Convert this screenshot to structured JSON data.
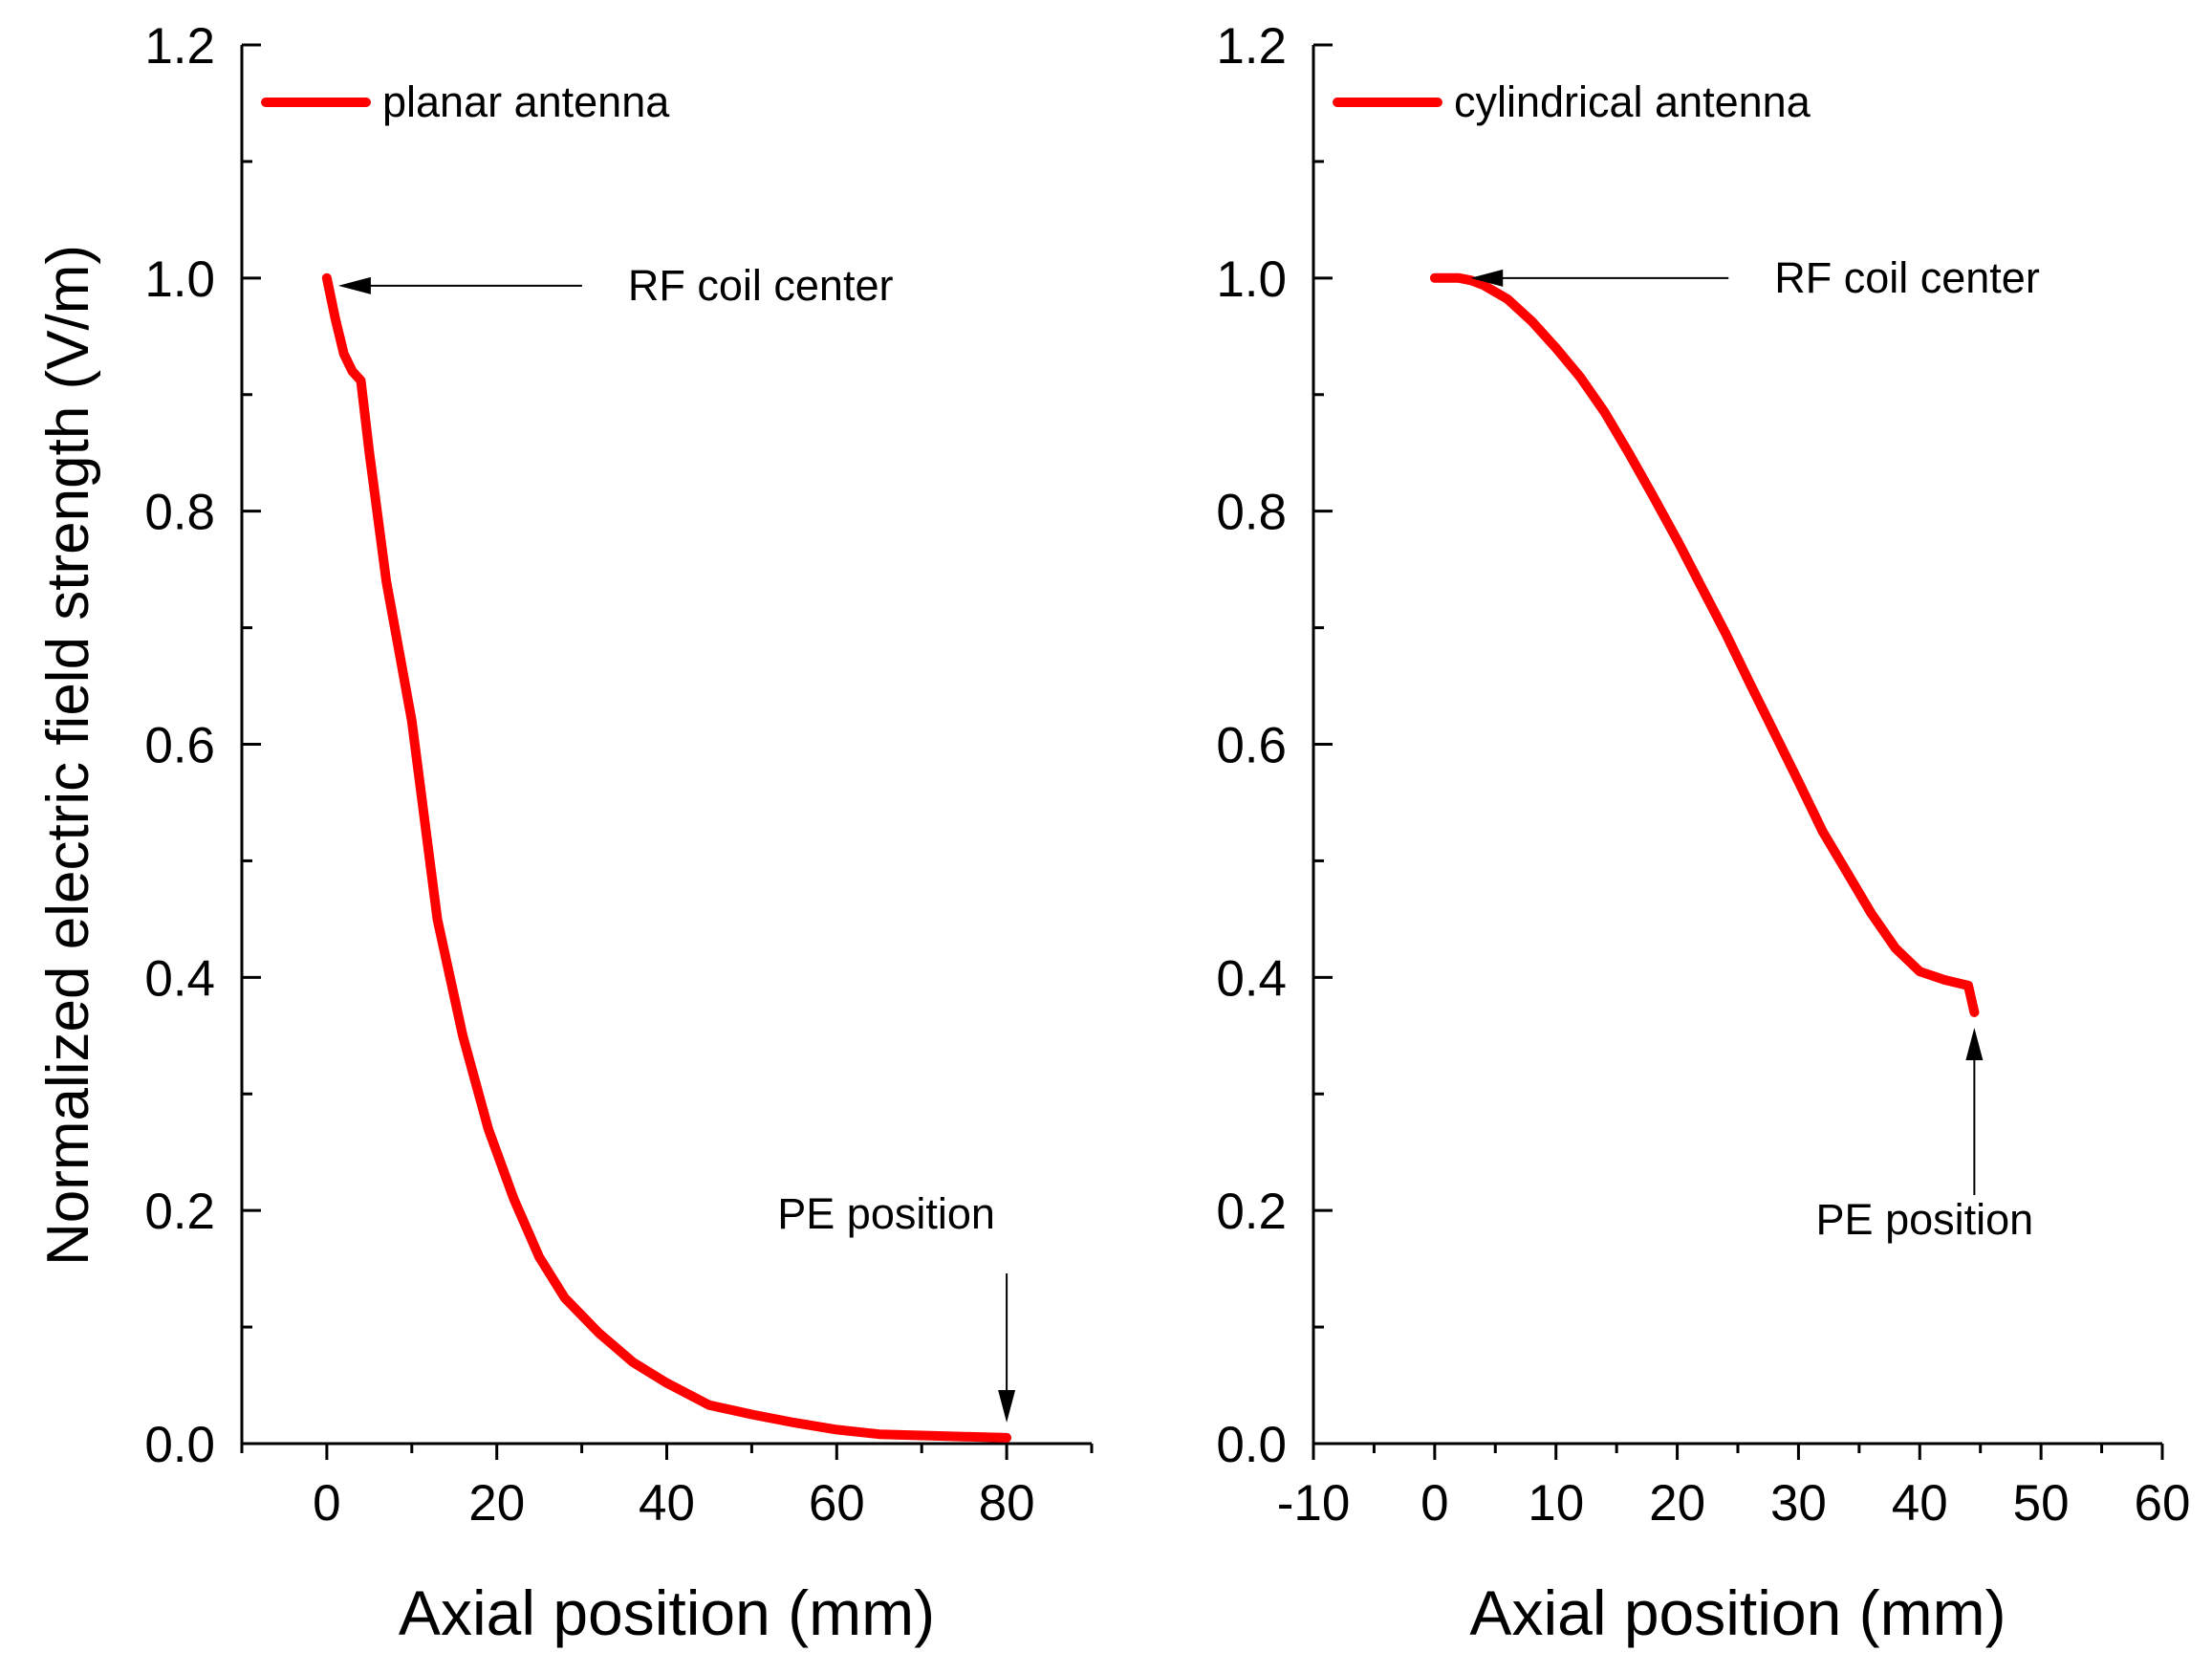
{
  "ylabel": "Normalized electric field strength (V/m)",
  "chart_data": [
    {
      "type": "line",
      "xlabel": "Axial position (mm)",
      "ylabel": "Normalized electric field strength (V/m)",
      "xlim": [
        -10,
        90
      ],
      "ylim": [
        0,
        1.2
      ],
      "xticks": [
        0,
        20,
        40,
        60,
        80
      ],
      "xtick_labels": [
        "0",
        "20",
        "40",
        "60",
        "80"
      ],
      "yticks": [
        0,
        0.2,
        0.4,
        0.6,
        0.8,
        1.0,
        1.2
      ],
      "ytick_labels": [
        "0.0",
        "0.2",
        "0.4",
        "0.6",
        "0.8",
        "1.0",
        "1.2"
      ],
      "legend_position": "top-left",
      "series": [
        {
          "name": "planar antenna",
          "color": "#ff0000",
          "x": [
            0,
            1,
            2,
            3,
            4,
            5,
            7,
            10,
            13,
            16,
            19,
            22,
            25,
            28,
            32,
            36,
            40,
            45,
            50,
            55,
            60,
            65,
            70,
            75,
            80
          ],
          "y": [
            1.0,
            0.965,
            0.935,
            0.92,
            0.912,
            0.85,
            0.74,
            0.62,
            0.45,
            0.35,
            0.27,
            0.21,
            0.16,
            0.125,
            0.095,
            0.07,
            0.052,
            0.033,
            0.025,
            0.018,
            0.012,
            0.008,
            0.007,
            0.006,
            0.005
          ]
        }
      ],
      "annotations": [
        {
          "text": "RF coil center",
          "x": 0,
          "y": 1.0,
          "arrow": "left"
        },
        {
          "text": "PE position",
          "x": 80,
          "y": 0.0,
          "arrow": "down"
        }
      ]
    },
    {
      "type": "line",
      "xlabel": "Axial position (mm)",
      "ylabel": "",
      "xlim": [
        -10,
        60
      ],
      "ylim": [
        0,
        1.2
      ],
      "xticks": [
        -10,
        0,
        10,
        20,
        30,
        40,
        50,
        60
      ],
      "xtick_labels": [
        "-10",
        "0",
        "10",
        "20",
        "30",
        "40",
        "50",
        "60"
      ],
      "yticks": [
        0,
        0.2,
        0.4,
        0.6,
        0.8,
        1.0,
        1.2
      ],
      "ytick_labels": [
        "0.0",
        "0.2",
        "0.4",
        "0.6",
        "0.8",
        "1.0",
        "1.2"
      ],
      "legend_position": "top-left",
      "series": [
        {
          "name": "cylindrical antenna",
          "color": "#ff0000",
          "x": [
            0,
            1,
            2,
            3,
            4,
            6,
            8,
            10,
            12,
            14,
            16,
            18,
            20,
            22,
            24,
            26,
            28,
            30,
            32,
            34,
            36,
            38,
            40,
            42,
            44,
            44.5
          ],
          "y": [
            1.0,
            1.0,
            1.0,
            0.998,
            0.994,
            0.982,
            0.963,
            0.94,
            0.915,
            0.885,
            0.85,
            0.813,
            0.775,
            0.735,
            0.695,
            0.652,
            0.61,
            0.568,
            0.525,
            0.49,
            0.455,
            0.425,
            0.405,
            0.398,
            0.393,
            0.37
          ]
        }
      ],
      "annotations": [
        {
          "text": "RF coil center",
          "x": 2,
          "y": 1.0,
          "arrow": "left"
        },
        {
          "text": "PE position",
          "x": 44.5,
          "y": 0.365,
          "arrow": "up"
        }
      ]
    }
  ]
}
